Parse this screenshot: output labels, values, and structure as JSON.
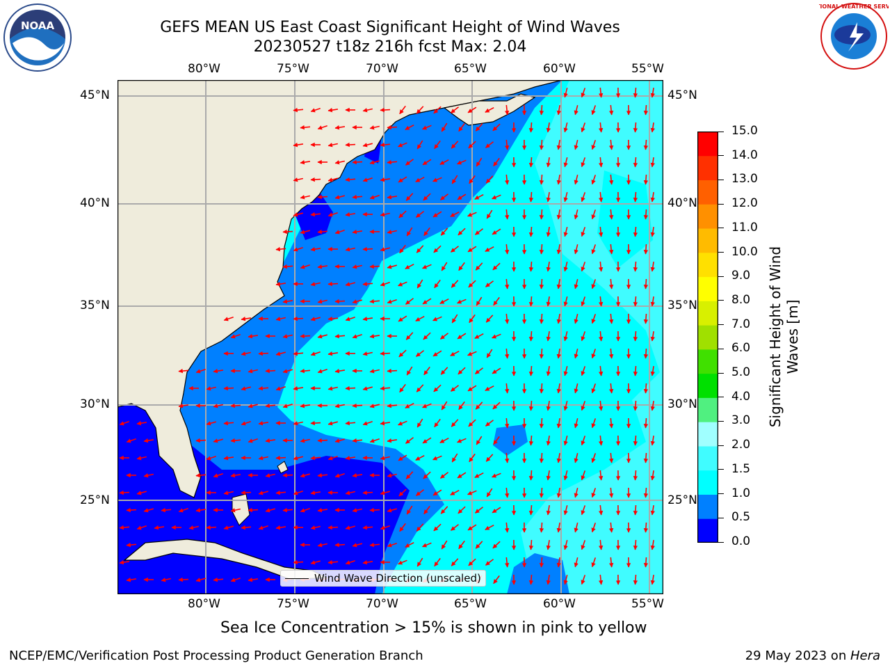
{
  "title": {
    "line1": "GEFS MEAN US East Coast Significant Height of Wind Waves",
    "line2": "20230527 t18z 216h fcst   Max: 2.04"
  },
  "logos": {
    "left": "noaa-logo",
    "right": "national-weather-service-logo",
    "noaa_text": "NOAA",
    "nws_text": "NATIONAL WEATHER SERVICE"
  },
  "map": {
    "lon_labels": [
      "80°W",
      "75°W",
      "70°W",
      "65°W",
      "60°W",
      "55°W"
    ],
    "lat_labels": [
      "45°N",
      "40°N",
      "35°N",
      "30°N",
      "25°N"
    ],
    "lon_range": [
      -85,
      -54.3
    ],
    "lat_range": [
      20,
      46
    ],
    "land_color": "#efecdc",
    "grid": true,
    "vector_color": "#ff0000",
    "legend": {
      "label": "Wind Wave Direction (unscaled)",
      "placement": "bottom-center"
    }
  },
  "colorbar": {
    "label_line1": "Significant Height of Wind",
    "label_line2": "Waves [m]",
    "ticks": [
      "15.0",
      "14.0",
      "13.0",
      "12.0",
      "11.0",
      "10.0",
      "9.0",
      "8.0",
      "7.0",
      "6.0",
      "5.0",
      "4.0",
      "3.0",
      "2.0",
      "1.5",
      "1.0",
      "0.5",
      "0.0"
    ],
    "colors_bottom_to_top": [
      "#0000ff",
      "#0080ff",
      "#00ffff",
      "#40fcff",
      "#a0ffff",
      "#50f080",
      "#00e000",
      "#40e000",
      "#a0e000",
      "#d8f000",
      "#ffff00",
      "#ffe000",
      "#ffbb00",
      "#ff9000",
      "#ff6000",
      "#ff3000",
      "#ff0000"
    ]
  },
  "sea_ice_note": "Sea Ice Concentration > 15% is shown in pink to yellow",
  "footer": {
    "left": "NCEP/EMC/Verification Post Processing Product Generation Branch",
    "right_date": "29 May 2023 on ",
    "right_host": "Hera"
  }
}
